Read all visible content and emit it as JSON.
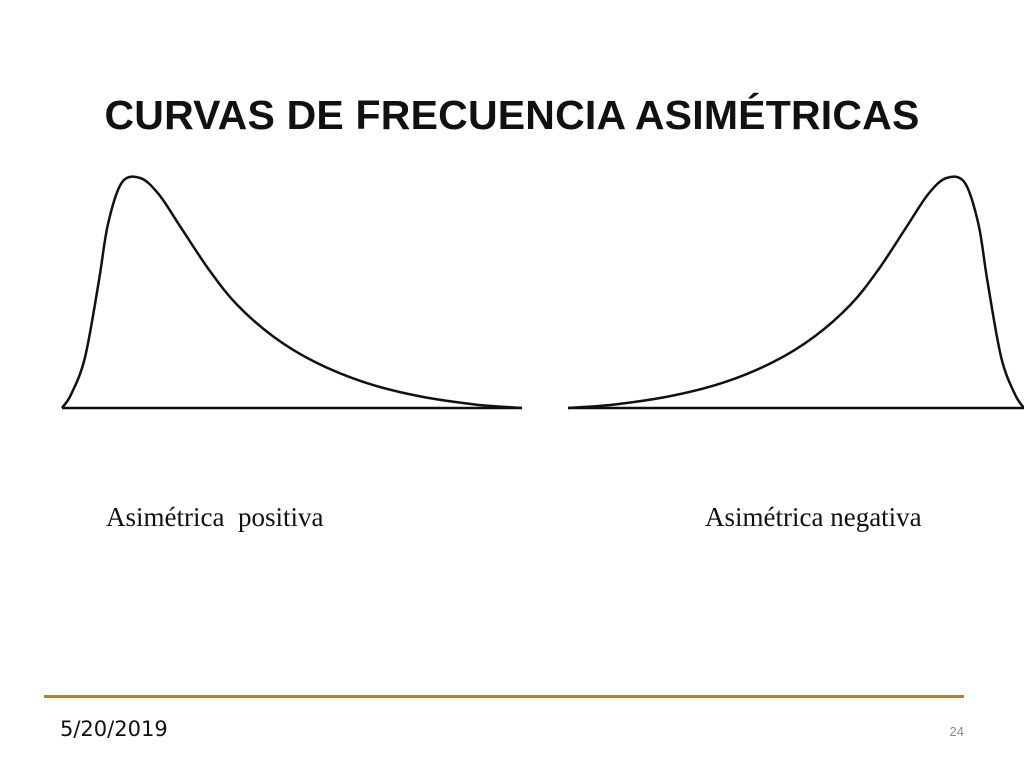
{
  "title": "CURVAS DE FRECUENCIA ASIMÉTRICAS",
  "curves": [
    {
      "label": "Asimétrica  positiva",
      "skew": "positive",
      "shape": [
        [
          0.0,
          0.0
        ],
        [
          0.02,
          0.06
        ],
        [
          0.05,
          0.22
        ],
        [
          0.08,
          0.55
        ],
        [
          0.1,
          0.8
        ],
        [
          0.13,
          0.98
        ],
        [
          0.17,
          1.0
        ],
        [
          0.21,
          0.93
        ],
        [
          0.26,
          0.78
        ],
        [
          0.32,
          0.6
        ],
        [
          0.38,
          0.45
        ],
        [
          0.46,
          0.31
        ],
        [
          0.55,
          0.2
        ],
        [
          0.66,
          0.11
        ],
        [
          0.78,
          0.05
        ],
        [
          0.9,
          0.015
        ],
        [
          1.0,
          0.0
        ]
      ],
      "stroke": "#111111"
    },
    {
      "label": "Asimétrica negativa",
      "skew": "negative",
      "shape": [
        [
          0.0,
          0.0
        ],
        [
          0.1,
          0.015
        ],
        [
          0.22,
          0.05
        ],
        [
          0.34,
          0.11
        ],
        [
          0.45,
          0.2
        ],
        [
          0.54,
          0.31
        ],
        [
          0.62,
          0.45
        ],
        [
          0.68,
          0.6
        ],
        [
          0.74,
          0.78
        ],
        [
          0.79,
          0.93
        ],
        [
          0.83,
          1.0
        ],
        [
          0.87,
          0.98
        ],
        [
          0.9,
          0.8
        ],
        [
          0.92,
          0.55
        ],
        [
          0.95,
          0.22
        ],
        [
          0.98,
          0.06
        ],
        [
          1.0,
          0.0
        ]
      ],
      "stroke": "#111111"
    }
  ],
  "footer": {
    "date": "5/20/2019",
    "page_number": "24",
    "rule_color": "#c87a1e"
  }
}
